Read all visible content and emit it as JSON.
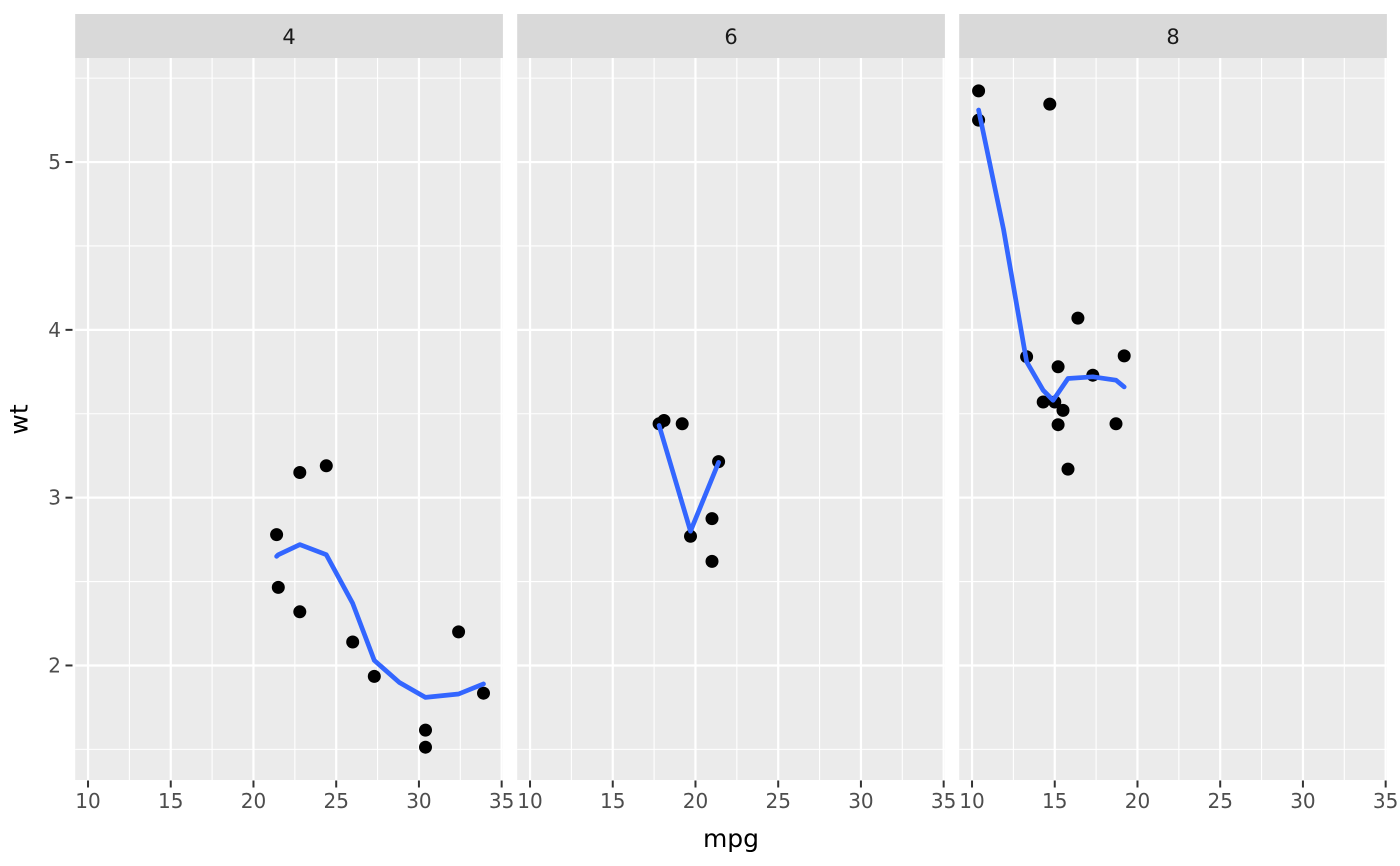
{
  "figure": {
    "background": "#FFFFFF"
  },
  "chart_data": {
    "type": "scatter",
    "title": "",
    "xlabel": "mpg",
    "ylabel": "wt",
    "facet_labels": [
      "4",
      "6",
      "8"
    ],
    "x_ticks": [
      10,
      15,
      20,
      25,
      30,
      35
    ],
    "x_minor_ticks": [
      12.5,
      17.5,
      22.5,
      27.5,
      32.5
    ],
    "y_ticks": [
      2,
      3,
      4,
      5
    ],
    "y_minor_ticks": [
      1.5,
      2.5,
      3.5,
      4.5,
      5.5
    ],
    "xlim": [
      9.225,
      35.075
    ],
    "ylim": [
      1.3175,
      5.62
    ],
    "grid": "major-and-minor-white",
    "legend": "none",
    "facets": [
      {
        "label": "4",
        "points": [
          [
            22.8,
            2.32
          ],
          [
            24.4,
            3.19
          ],
          [
            22.8,
            3.15
          ],
          [
            32.4,
            2.2
          ],
          [
            30.4,
            1.615
          ],
          [
            33.9,
            1.835
          ],
          [
            21.5,
            2.465
          ],
          [
            27.3,
            1.935
          ],
          [
            26.0,
            2.14
          ],
          [
            30.4,
            1.513
          ],
          [
            21.4,
            2.78
          ]
        ],
        "smooth": [
          [
            21.4,
            2.65
          ],
          [
            21.5,
            2.66
          ],
          [
            22.8,
            2.72
          ],
          [
            24.4,
            2.66
          ],
          [
            26.0,
            2.37
          ],
          [
            27.3,
            2.03
          ],
          [
            28.8,
            1.9
          ],
          [
            30.4,
            1.81
          ],
          [
            32.4,
            1.83
          ],
          [
            33.9,
            1.89
          ]
        ]
      },
      {
        "label": "6",
        "points": [
          [
            21.0,
            2.62
          ],
          [
            21.0,
            2.875
          ],
          [
            21.4,
            3.215
          ],
          [
            18.1,
            3.46
          ],
          [
            19.2,
            3.44
          ],
          [
            17.8,
            3.44
          ],
          [
            19.7,
            2.77
          ]
        ],
        "smooth": [
          [
            17.8,
            3.43
          ],
          [
            19.7,
            2.8
          ],
          [
            21.4,
            3.21
          ]
        ]
      },
      {
        "label": "8",
        "points": [
          [
            18.7,
            3.44
          ],
          [
            14.3,
            3.57
          ],
          [
            16.4,
            4.07
          ],
          [
            17.3,
            3.73
          ],
          [
            15.2,
            3.78
          ],
          [
            10.4,
            5.25
          ],
          [
            10.4,
            5.424
          ],
          [
            14.7,
            5.345
          ],
          [
            15.5,
            3.52
          ],
          [
            15.2,
            3.435
          ],
          [
            13.3,
            3.84
          ],
          [
            19.2,
            3.845
          ],
          [
            15.8,
            3.17
          ],
          [
            15.0,
            3.57
          ]
        ],
        "smooth": [
          [
            10.4,
            5.31
          ],
          [
            11.9,
            4.6
          ],
          [
            13.3,
            3.81
          ],
          [
            14.3,
            3.64
          ],
          [
            14.9,
            3.58
          ],
          [
            15.8,
            3.71
          ],
          [
            17.3,
            3.72
          ],
          [
            18.7,
            3.7
          ],
          [
            19.2,
            3.66
          ]
        ]
      }
    ],
    "colors": {
      "point": "#000000",
      "smooth_line": "#3366FF",
      "panel_background": "#EBEBEB",
      "strip_background": "#D9D9D9",
      "grid_line": "#FFFFFF",
      "tick_mark": "#333333",
      "tick_label": "#4D4D4D",
      "strip_label": "#1A1A1A",
      "axis_title": "#000000"
    }
  }
}
